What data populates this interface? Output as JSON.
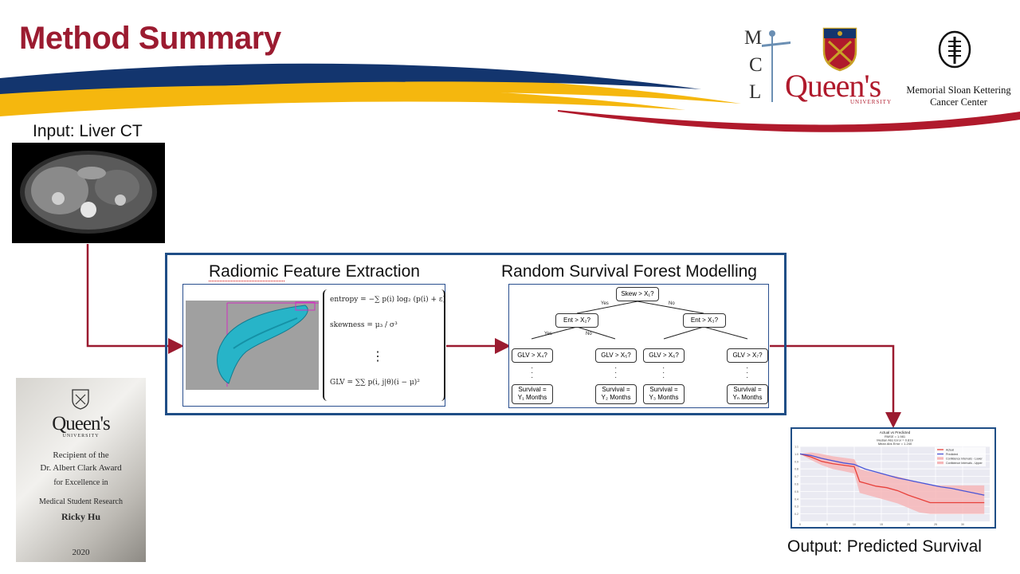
{
  "slide": {
    "title": "Method Summary",
    "input_label": "Input: Liver CT",
    "output_label": "Output: Predicted Survival"
  },
  "logos": {
    "mcl": [
      "M",
      "C",
      "L"
    ],
    "queens_wordmark": "Queen's",
    "queens_sub": "UNIVERSITY",
    "mskcc_line1": "Memorial Sloan Kettering",
    "mskcc_line2": "Cancer Center"
  },
  "radiomics": {
    "heading": "Radiomic Feature Extraction",
    "equations": {
      "entropy": "entropy = −∑ p(i) log₂ (p(i) + ε)",
      "skewness": "skewness = μ₃ / σ³",
      "vdots": "⋮",
      "glv": "GLV = ∑∑ p(i, j|θ)(i − μ)²"
    }
  },
  "rsf": {
    "heading": "Random Survival Forest Modelling",
    "root": "Skew > X₁?",
    "edge_yes": "Yes",
    "edge_no": "No",
    "level2": [
      "Ent > X₂?",
      "Ent > X₃?"
    ],
    "level3": [
      "GLV > X₄?",
      "GLV > X₅?",
      "GLV > X₆?",
      "GLV > X₇?"
    ],
    "leaves": [
      {
        "l1": "Survival =",
        "l2": "Y₁ Months"
      },
      {
        "l1": "Survival =",
        "l2": "Y₂ Months"
      },
      {
        "l1": "Survival =",
        "l2": "Y₃ Months"
      },
      {
        "l1": "Survival =",
        "l2": "Yₙ Months"
      }
    ]
  },
  "plaque": {
    "wordmark": "Queen's",
    "sub": "UNIVERSITY",
    "line1": "Recipient of the",
    "line2": "Dr. Albert Clark Award",
    "line3": "for Excellence in",
    "line4": "Medical Student Research",
    "name": "Ricky Hu",
    "year": "2020"
  },
  "chart_data": {
    "type": "line",
    "title": "Actual vs Predicted",
    "subtitle_lines": [
      "RMSE = 1.981",
      "Median Abs Error = 0.819",
      "Mean Abs Error = 1.240"
    ],
    "legend": [
      "Actual",
      "Predicted",
      "Confidence Intervals - Lower",
      "Confidence Intervals - Upper"
    ],
    "legend_position": "top-right",
    "grid": true,
    "colors": {
      "actual": "#e8403a",
      "predicted": "#4a55d6",
      "band": "#f6b6b8"
    },
    "xlim": [
      0,
      35
    ],
    "ylim": [
      0.1,
      1.1
    ],
    "x": [
      0,
      2,
      4,
      6,
      8,
      10,
      11,
      12,
      14,
      16,
      18,
      20,
      22,
      24,
      26,
      28,
      30,
      32,
      34
    ],
    "actual": [
      1.0,
      0.96,
      0.9,
      0.87,
      0.85,
      0.83,
      0.63,
      0.61,
      0.57,
      0.55,
      0.51,
      0.45,
      0.4,
      0.35,
      0.35,
      0.35,
      0.35,
      0.35,
      0.35
    ],
    "predicted": [
      1.0,
      0.98,
      0.94,
      0.91,
      0.88,
      0.86,
      0.83,
      0.8,
      0.76,
      0.72,
      0.68,
      0.65,
      0.62,
      0.59,
      0.56,
      0.54,
      0.51,
      0.48,
      0.45
    ],
    "ci_lower": [
      1.0,
      0.92,
      0.85,
      0.8,
      0.77,
      0.74,
      0.48,
      0.46,
      0.42,
      0.38,
      0.34,
      0.28,
      0.22,
      0.2,
      0.2,
      0.2,
      0.2,
      0.2,
      0.2
    ],
    "ci_upper": [
      1.0,
      1.02,
      1.0,
      0.97,
      0.95,
      0.93,
      0.8,
      0.78,
      0.75,
      0.72,
      0.7,
      0.66,
      0.62,
      0.58,
      0.58,
      0.58,
      0.58,
      0.58,
      0.58
    ],
    "xticks": [
      0,
      5,
      10,
      15,
      20,
      25,
      30
    ],
    "yticks": [
      0.2,
      0.3,
      0.4,
      0.5,
      0.6,
      0.7,
      0.8,
      0.9,
      1.0,
      1.1
    ]
  }
}
